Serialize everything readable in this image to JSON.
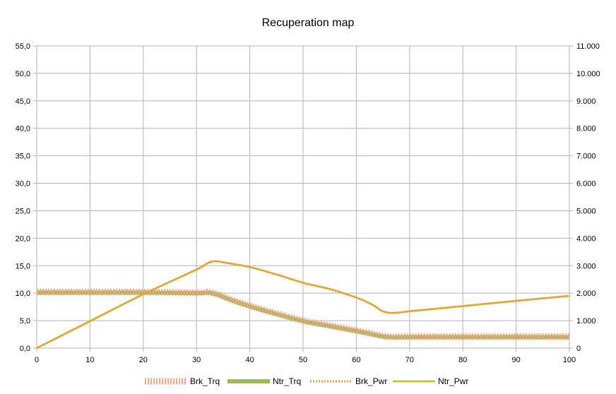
{
  "chart_data": {
    "type": "line",
    "title": "Recuperation map",
    "xlabel": "",
    "ylabel_left": "",
    "ylabel_right": "",
    "xlim": [
      0,
      100
    ],
    "ylim_left": [
      0,
      55
    ],
    "ylim_right": [
      0,
      11000
    ],
    "x_ticks": [
      0,
      10,
      20,
      30,
      40,
      50,
      60,
      70,
      80,
      90,
      100
    ],
    "x_tick_labels": [
      "0",
      "10",
      "20",
      "30",
      "40",
      "50",
      "60",
      "70",
      "80",
      "90",
      "100"
    ],
    "y_left_ticks": [
      0,
      5,
      10,
      15,
      20,
      25,
      30,
      35,
      40,
      45,
      50,
      55
    ],
    "y_left_tick_labels": [
      "0,0",
      "5,0",
      "10,0",
      "15,0",
      "20,0",
      "25,0",
      "30,0",
      "35,0",
      "40,0",
      "45,0",
      "50,0",
      "55,0"
    ],
    "y_right_ticks": [
      0,
      1000,
      2000,
      3000,
      4000,
      5000,
      6000,
      7000,
      8000,
      9000,
      10000,
      11000
    ],
    "y_right_tick_labels": [
      "0",
      "1.000",
      "2.000",
      "3.000",
      "4.000",
      "5.000",
      "6.000",
      "7.000",
      "8.000",
      "9.000",
      "10.000",
      "11.000"
    ],
    "grid": true,
    "legend_position": "bottom",
    "series": [
      {
        "name": "Brk_Trq",
        "axis": "left",
        "color": "#f4a582",
        "style": "dotted-thick",
        "x": [
          0,
          10,
          20,
          30,
          32,
          34,
          36,
          40,
          45,
          50,
          55,
          60,
          63,
          66,
          70,
          80,
          90,
          100
        ],
        "y": [
          10.2,
          10.2,
          10.2,
          10.1,
          10.2,
          9.8,
          9.0,
          7.7,
          6.3,
          5.0,
          4.1,
          3.2,
          2.6,
          2.1,
          2.1,
          2.1,
          2.1,
          2.1
        ]
      },
      {
        "name": "Ntr_Trq",
        "axis": "left",
        "color": "#9bbb59",
        "style": "solid-thick",
        "x": [
          0,
          10,
          20,
          30,
          32,
          34,
          36,
          40,
          45,
          50,
          55,
          60,
          63,
          66,
          70,
          80,
          90,
          100
        ],
        "y": [
          10.1,
          10.1,
          10.1,
          10.0,
          10.1,
          9.7,
          8.9,
          7.6,
          6.2,
          4.9,
          4.0,
          3.1,
          2.5,
          2.0,
          2.0,
          2.0,
          2.0,
          2.0
        ]
      },
      {
        "name": "Brk_Pwr",
        "axis": "right",
        "color": "#f79646",
        "style": "dotted",
        "x": [
          0,
          10,
          20,
          30,
          32,
          33.5,
          36,
          40,
          45,
          50,
          55,
          60,
          63,
          65,
          67,
          70,
          80,
          90,
          100
        ],
        "y": [
          0,
          980,
          1960,
          2860,
          3080,
          3160,
          3090,
          2950,
          2680,
          2380,
          2150,
          1840,
          1580,
          1340,
          1280,
          1340,
          1530,
          1720,
          1900
        ]
      },
      {
        "name": "Ntr_Pwr",
        "axis": "right",
        "color": "#bfbf1f",
        "style": "solid",
        "x": [
          0,
          10,
          20,
          30,
          32,
          33.5,
          36,
          40,
          45,
          50,
          55,
          60,
          63,
          65,
          67,
          70,
          80,
          90,
          100
        ],
        "y": [
          0,
          980,
          1960,
          2860,
          3080,
          3160,
          3090,
          2950,
          2680,
          2380,
          2150,
          1840,
          1580,
          1340,
          1280,
          1340,
          1530,
          1720,
          1900
        ]
      }
    ]
  }
}
